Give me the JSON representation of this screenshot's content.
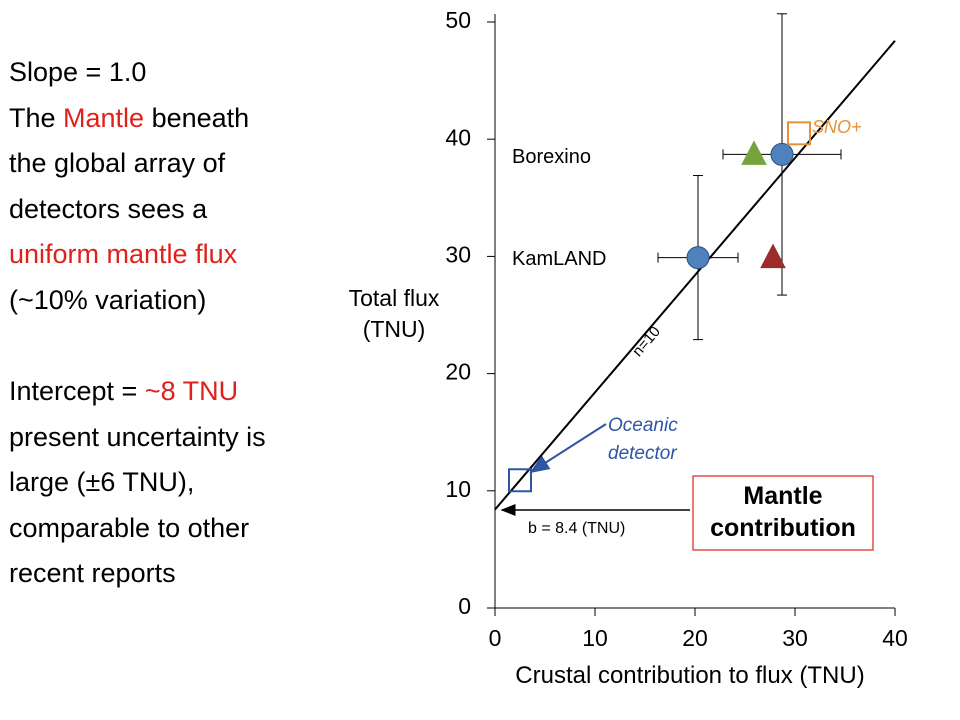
{
  "chart_data": {
    "type": "scatter",
    "xlabel": "Crustal contribution to flux (TNU)",
    "ylabel": "Total flux (TNU)",
    "xlim": [
      0,
      40
    ],
    "ylim": [
      0,
      50
    ],
    "xticks": [
      0,
      10,
      20,
      30,
      40
    ],
    "yticks": [
      0,
      10,
      20,
      30,
      40,
      50
    ],
    "fit": {
      "slope": 1,
      "intercept": 8.4,
      "color": "#000000",
      "label": "n=10"
    },
    "series": [
      {
        "name": "Borexino",
        "marker": "circle",
        "color": "#4f81bd",
        "x": [
          28.7
        ],
        "values": [
          38.7
        ],
        "xerr": [
          5.9
        ],
        "yerr": [
          12
        ]
      },
      {
        "name": "KamLAND",
        "marker": "circle",
        "color": "#4f81bd",
        "x": [
          20.3
        ],
        "values": [
          29.9
        ],
        "xerr": [
          4
        ],
        "yerr": [
          7
        ]
      },
      {
        "marker": "triangle",
        "color": "#77a33c",
        "x": [
          25.9
        ],
        "values": [
          38.7
        ]
      },
      {
        "marker": "triangle",
        "color": "#9b2c2c",
        "x": [
          27.8
        ],
        "values": [
          29.9
        ]
      },
      {
        "name": "SNO+",
        "marker": "square",
        "color": "#e69138",
        "x": [
          30.4
        ],
        "values": [
          40.5
        ]
      },
      {
        "name": "Oceanic detector",
        "marker": "square",
        "color": "#2f55a4",
        "x": [
          2.5
        ],
        "values": [
          10.9
        ]
      }
    ],
    "annotations": {
      "intercept": "b = 8.4 (TNU)",
      "box": "Mantle contribution"
    }
  },
  "notes": [
    [
      {
        "text": "Slope = 1.0"
      }
    ],
    [
      {
        "text": "The "
      },
      {
        "text": "Mantle",
        "color": "#e0201b"
      },
      {
        "text": " beneath"
      }
    ],
    [
      {
        "text": "the global array of"
      }
    ],
    [
      {
        "text": "detectors sees a"
      }
    ],
    [
      {
        "text": "uniform mantle flux",
        "color": "#e0201b"
      }
    ],
    [
      {
        "text": "(~10% variation)"
      }
    ],
    [
      {
        "text": "Intercept = "
      },
      {
        "text": "~8 TNU",
        "color": "#e0201b"
      }
    ],
    [
      {
        "text": "present uncertainty is"
      }
    ],
    [
      {
        "text": "large (±6 TNU),"
      }
    ],
    [
      {
        "text": "comparable to other"
      }
    ],
    [
      {
        "text": "recent reports"
      }
    ]
  ]
}
